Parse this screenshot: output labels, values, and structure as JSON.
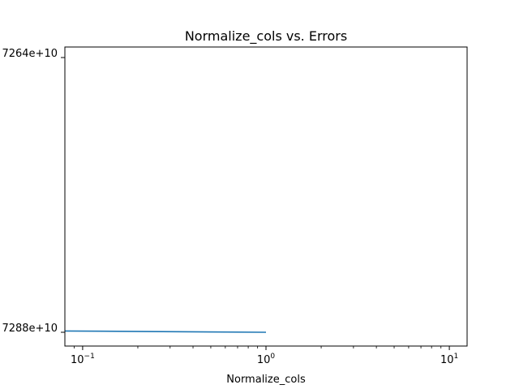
{
  "chart_data": {
    "type": "line",
    "title": "Normalize_cols vs. Errors",
    "xlabel": "Normalize_cols",
    "ylabel": "",
    "xscale": "log",
    "xlim": [
      0.08,
      12.5
    ],
    "grid": false,
    "legend": "none",
    "x_tick_labels": [
      {
        "value": 0.1,
        "base": "10",
        "exp": "−1"
      },
      {
        "value": 1,
        "base": "10",
        "exp": "0"
      },
      {
        "value": 10,
        "base": "10",
        "exp": "1"
      }
    ],
    "y_tick_labels": [
      {
        "label": "7264e+10",
        "position": "top"
      },
      {
        "label": "7288e+10",
        "position": "bottom"
      }
    ],
    "series": [
      {
        "color": "#1f77b4",
        "x": [
          0.08,
          1.0
        ],
        "y_level": [
          0.016,
          0.0
        ]
      }
    ]
  }
}
